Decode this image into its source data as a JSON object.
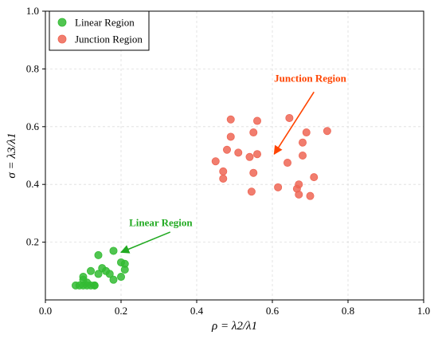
{
  "chart_data": {
    "type": "scatter",
    "xlabel": "ρ = λ2/λ1",
    "ylabel": "σ = λ3/λ1",
    "xlim": [
      0.0,
      1.0
    ],
    "ylim": [
      0.0,
      1.0
    ],
    "x_ticks": [
      "0.0",
      "0.2",
      "0.4",
      "0.6",
      "0.8",
      "1.0"
    ],
    "y_ticks": [
      "0.2",
      "0.4",
      "0.6",
      "0.8",
      "1.0"
    ],
    "grid": true,
    "legend_position": "top-left",
    "series": [
      {
        "name": "Linear Region",
        "color": "#33bb33",
        "points": [
          [
            0.08,
            0.05
          ],
          [
            0.09,
            0.05
          ],
          [
            0.1,
            0.05
          ],
          [
            0.11,
            0.05
          ],
          [
            0.12,
            0.05
          ],
          [
            0.13,
            0.05
          ],
          [
            0.1,
            0.07
          ],
          [
            0.11,
            0.06
          ],
          [
            0.1,
            0.08
          ],
          [
            0.12,
            0.1
          ],
          [
            0.14,
            0.09
          ],
          [
            0.15,
            0.11
          ],
          [
            0.16,
            0.1
          ],
          [
            0.17,
            0.09
          ],
          [
            0.14,
            0.155
          ],
          [
            0.18,
            0.07
          ],
          [
            0.2,
            0.08
          ],
          [
            0.2,
            0.13
          ],
          [
            0.21,
            0.125
          ],
          [
            0.21,
            0.105
          ],
          [
            0.18,
            0.17
          ],
          [
            0.13,
            0.05
          ]
        ]
      },
      {
        "name": "Junction Region",
        "color": "#ee6655",
        "points": [
          [
            0.45,
            0.48
          ],
          [
            0.47,
            0.445
          ],
          [
            0.47,
            0.42
          ],
          [
            0.48,
            0.52
          ],
          [
            0.49,
            0.625
          ],
          [
            0.49,
            0.565
          ],
          [
            0.51,
            0.51
          ],
          [
            0.54,
            0.495
          ],
          [
            0.545,
            0.375
          ],
          [
            0.55,
            0.44
          ],
          [
            0.55,
            0.58
          ],
          [
            0.56,
            0.505
          ],
          [
            0.56,
            0.62
          ],
          [
            0.615,
            0.39
          ],
          [
            0.64,
            0.475
          ],
          [
            0.645,
            0.63
          ],
          [
            0.665,
            0.385
          ],
          [
            0.67,
            0.4
          ],
          [
            0.68,
            0.545
          ],
          [
            0.68,
            0.5
          ],
          [
            0.69,
            0.58
          ],
          [
            0.7,
            0.36
          ],
          [
            0.71,
            0.425
          ],
          [
            0.745,
            0.585
          ],
          [
            0.67,
            0.365
          ]
        ]
      }
    ],
    "annotations": [
      {
        "text": "Junction Region",
        "color": "#ff4400",
        "text_at": [
          0.7,
          0.755
        ],
        "arrow_from": [
          0.71,
          0.72
        ],
        "arrow_to": [
          0.605,
          0.505
        ]
      },
      {
        "text": "Linear Region",
        "color": "#22aa22",
        "text_at": [
          0.305,
          0.255
        ],
        "arrow_from": [
          0.33,
          0.235
        ],
        "arrow_to": [
          0.2,
          0.165
        ]
      }
    ]
  }
}
